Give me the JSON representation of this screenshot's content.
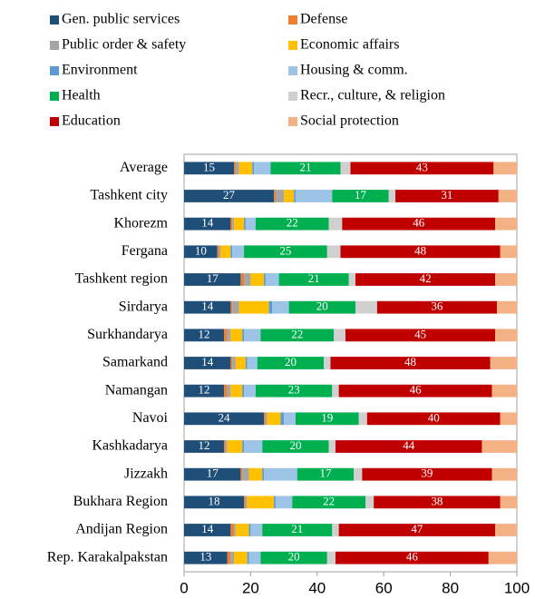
{
  "chart_data": {
    "type": "stacked_barh",
    "categories": [
      "Average",
      "Tashkent city",
      "Khorezm",
      "Fergana",
      "Tashkent region",
      "Sirdarya",
      "Surkhandarya",
      "Samarkand",
      "Namangan",
      "Navoi",
      "Kashkadarya",
      "Jizzakh",
      "Bukhara Region",
      "Andijan Region",
      "Rep. Karakalpakstan"
    ],
    "series": [
      {
        "name": "Gen. public services",
        "color": "#1f4e79",
        "data_labels": true,
        "values": [
          15,
          27,
          14,
          10,
          17,
          14,
          12,
          14,
          12,
          24,
          12,
          17,
          18,
          14,
          13
        ]
      },
      {
        "name": "Defense",
        "color": "#ed7d31",
        "values": [
          0.5,
          0.5,
          0.5,
          0.5,
          1,
          0.5,
          1,
          0.5,
          1,
          0.5,
          0.5,
          0.5,
          0.5,
          1,
          1
        ]
      },
      {
        "name": "Public order & safety",
        "color": "#a5a5a5",
        "values": [
          1,
          2.5,
          0.5,
          0.5,
          2,
          2,
          1,
          1,
          1,
          0.5,
          0.5,
          2,
          0.5,
          0.5,
          1
        ]
      },
      {
        "name": "Economic affairs",
        "color": "#ffc000",
        "values": [
          4,
          3,
          3,
          3,
          4,
          9,
          3.5,
          3,
          3.5,
          4,
          4.5,
          4,
          8,
          4,
          4
        ]
      },
      {
        "name": "Environment",
        "color": "#5b9bd5",
        "values": [
          0.5,
          0.5,
          0.5,
          0.5,
          0.5,
          1,
          0.5,
          0.5,
          0.5,
          1,
          0.5,
          0.5,
          0.5,
          0.5,
          0.5
        ]
      },
      {
        "name": "Housing & comm.",
        "color": "#9dc3e6",
        "values": [
          5,
          11,
          3,
          3.5,
          4,
          5,
          5,
          3,
          3.5,
          3.5,
          5.5,
          10,
          5,
          3.5,
          3.5
        ]
      },
      {
        "name": "Health",
        "color": "#00b050",
        "data_labels": true,
        "values": [
          21,
          17,
          22,
          25,
          21,
          20,
          22,
          20,
          23,
          19,
          20,
          17,
          22,
          21,
          20
        ]
      },
      {
        "name": "Recr., culture, & religion",
        "color": "#d0d0d0",
        "values": [
          3,
          2,
          4,
          4,
          2,
          6.5,
          3.5,
          2,
          2,
          2.5,
          2,
          2.5,
          2.5,
          2,
          2.5
        ]
      },
      {
        "name": "Education",
        "color": "#c00000",
        "data_labels": true,
        "values": [
          43,
          31,
          46,
          48,
          42,
          36,
          45,
          48,
          46,
          40,
          44,
          39,
          38,
          47,
          46
        ]
      },
      {
        "name": "Social protection",
        "color": "#f4b183",
        "values": [
          7,
          5.5,
          6.5,
          5,
          6.5,
          6,
          6.5,
          8,
          7.5,
          5,
          10.5,
          7.5,
          5,
          6.5,
          8.5
        ]
      }
    ],
    "xlim": [
      0,
      100
    ],
    "xticks": [
      0,
      20,
      40,
      60,
      80,
      100
    ],
    "legend": "top"
  }
}
